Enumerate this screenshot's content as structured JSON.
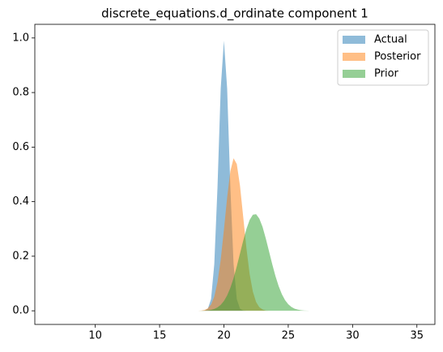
{
  "chart_data": {
    "type": "area",
    "title": "discrete_equations.d_ordinate component 1",
    "x": [
      17.5,
      17.75,
      18,
      18.25,
      18.5,
      18.75,
      19,
      19.25,
      19.5,
      19.75,
      20,
      20.25,
      20.5,
      20.75,
      21,
      21.25,
      21.5,
      21.75,
      22,
      22.25,
      22.5,
      22.75,
      23,
      23.25,
      23.5,
      23.75,
      24,
      24.25,
      24.5,
      24.75,
      25,
      25.25,
      25.5,
      25.75,
      26,
      26.25,
      26.5,
      26.75,
      27
    ],
    "series": [
      {
        "name": "Actual",
        "color": "#1f77b4",
        "values": [
          0,
          0,
          0,
          0,
          0.001,
          0.0075,
          0.043,
          0.171,
          0.453,
          0.815,
          0.99,
          0.815,
          0.453,
          0.171,
          0.043,
          0.0075,
          0.001,
          0,
          0,
          0,
          0,
          0,
          0,
          0,
          0,
          0,
          0,
          0,
          0,
          0,
          0,
          0,
          0,
          0,
          0,
          0,
          0,
          0,
          0
        ]
      },
      {
        "name": "Posterior",
        "color": "#ff7f0e",
        "values": [
          0,
          0,
          0.0002,
          0.0009,
          0.003,
          0.009,
          0.023,
          0.052,
          0.105,
          0.187,
          0.297,
          0.415,
          0.512,
          0.559,
          0.538,
          0.458,
          0.344,
          0.229,
          0.134,
          0.07,
          0.032,
          0.013,
          0.005,
          0.001,
          0,
          0,
          0,
          0,
          0,
          0,
          0,
          0,
          0,
          0,
          0,
          0,
          0,
          0,
          0
        ]
      },
      {
        "name": "Prior",
        "color": "#2ca02c",
        "values": [
          0,
          0.0001,
          0.0002,
          0.0004,
          0.0008,
          0.0018,
          0.0035,
          0.0068,
          0.0124,
          0.0216,
          0.0357,
          0.0563,
          0.0842,
          0.12,
          0.163,
          0.21,
          0.257,
          0.3,
          0.333,
          0.352,
          0.354,
          0.338,
          0.308,
          0.266,
          0.219,
          0.172,
          0.128,
          0.091,
          0.061,
          0.039,
          0.024,
          0.014,
          0.0077,
          0.0041,
          0.002,
          0.001,
          0.0004,
          0.0002,
          0.0001
        ]
      }
    ],
    "fill_opacity": 0.5,
    "xlim": [
      5.3,
      36.4
    ],
    "xticks": [
      10,
      15,
      20,
      25,
      30,
      35
    ],
    "ylim": [
      -0.05,
      1.05
    ],
    "yticks": [
      {
        "value": 0,
        "label": "0.0"
      },
      {
        "value": 0.2,
        "label": "0.2"
      },
      {
        "value": 0.4,
        "label": "0.4"
      },
      {
        "value": 0.6,
        "label": "0.6"
      },
      {
        "value": 0.8,
        "label": "0.8"
      },
      {
        "value": 1,
        "label": "1.0"
      }
    ],
    "grid": false,
    "legend": "upper right"
  }
}
